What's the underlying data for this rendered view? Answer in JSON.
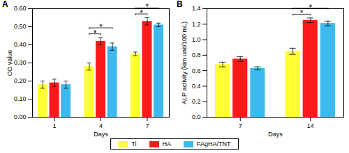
{
  "chart_data": [
    {
      "type": "bar",
      "title": "A",
      "x_label": "Days",
      "y_label": "OD value",
      "categories": [
        "1",
        "4",
        "7"
      ],
      "series": [
        {
          "name": "Ti",
          "color": "#ffff33",
          "values": [
            0.18,
            0.28,
            0.35
          ],
          "errors": [
            0.02,
            0.02,
            0.01
          ]
        },
        {
          "name": "HA",
          "color": "#ff1a1a",
          "values": [
            0.19,
            0.42,
            0.53
          ],
          "errors": [
            0.02,
            0.02,
            0.02
          ]
        },
        {
          "name": "FAgHA/TNT",
          "color": "#3db9ef",
          "values": [
            0.18,
            0.39,
            0.51
          ],
          "errors": [
            0.02,
            0.02,
            0.01
          ]
        }
      ],
      "ylim": [
        0,
        0.6
      ],
      "yticks": [
        {
          "value": 0,
          "label": "0.00"
        },
        {
          "value": 0.1,
          "label": "0.10"
        },
        {
          "value": 0.2,
          "label": "0.20"
        },
        {
          "value": 0.3,
          "label": "0.30"
        },
        {
          "value": 0.4,
          "label": "0.40"
        },
        {
          "value": 0.5,
          "label": "0.50"
        },
        {
          "value": 0.6,
          "label": "0.60"
        }
      ],
      "annotations": [
        {
          "category": "4",
          "from": "Ti",
          "to": "HA",
          "text": "*"
        },
        {
          "category": "4",
          "from": "Ti",
          "to": "FAgHA/TNT",
          "text": "*"
        },
        {
          "category": "7",
          "from": "Ti",
          "to": "HA",
          "text": "*"
        },
        {
          "category": "7",
          "from": "Ti",
          "to": "FAgHA/TNT",
          "text": "*"
        }
      ],
      "legend": "bottom"
    },
    {
      "type": "bar",
      "title": "B",
      "x_label": "Days",
      "y_label": "ALP activity (kim unit/100 mL)",
      "categories": [
        "7",
        "14"
      ],
      "series": [
        {
          "name": "Ti",
          "color": "#ffff33",
          "values": [
            0.68,
            0.85
          ],
          "errors": [
            0.03,
            0.04
          ]
        },
        {
          "name": "HA",
          "color": "#ff1a1a",
          "values": [
            0.75,
            1.25
          ],
          "errors": [
            0.03,
            0.03
          ]
        },
        {
          "name": "FAgHA/TNT",
          "color": "#3db9ef",
          "values": [
            0.63,
            1.21
          ],
          "errors": [
            0.02,
            0.03
          ]
        }
      ],
      "ylim": [
        0,
        1.4
      ],
      "yticks": [
        {
          "value": 0,
          "label": "0.0"
        },
        {
          "value": 0.2,
          "label": "0.2"
        },
        {
          "value": 0.4,
          "label": "0.4"
        },
        {
          "value": 0.6,
          "label": "0.6"
        },
        {
          "value": 0.8,
          "label": "0.8"
        },
        {
          "value": 1,
          "label": "1.0"
        },
        {
          "value": 1.2,
          "label": "1.2"
        },
        {
          "value": 1.4,
          "label": "1.4"
        }
      ],
      "annotations": [
        {
          "category": "14",
          "from": "Ti",
          "to": "HA",
          "text": "*"
        },
        {
          "category": "14",
          "from": "Ti",
          "to": "FAgHA/TNT",
          "text": "*"
        }
      ],
      "legend": "bottom"
    }
  ]
}
